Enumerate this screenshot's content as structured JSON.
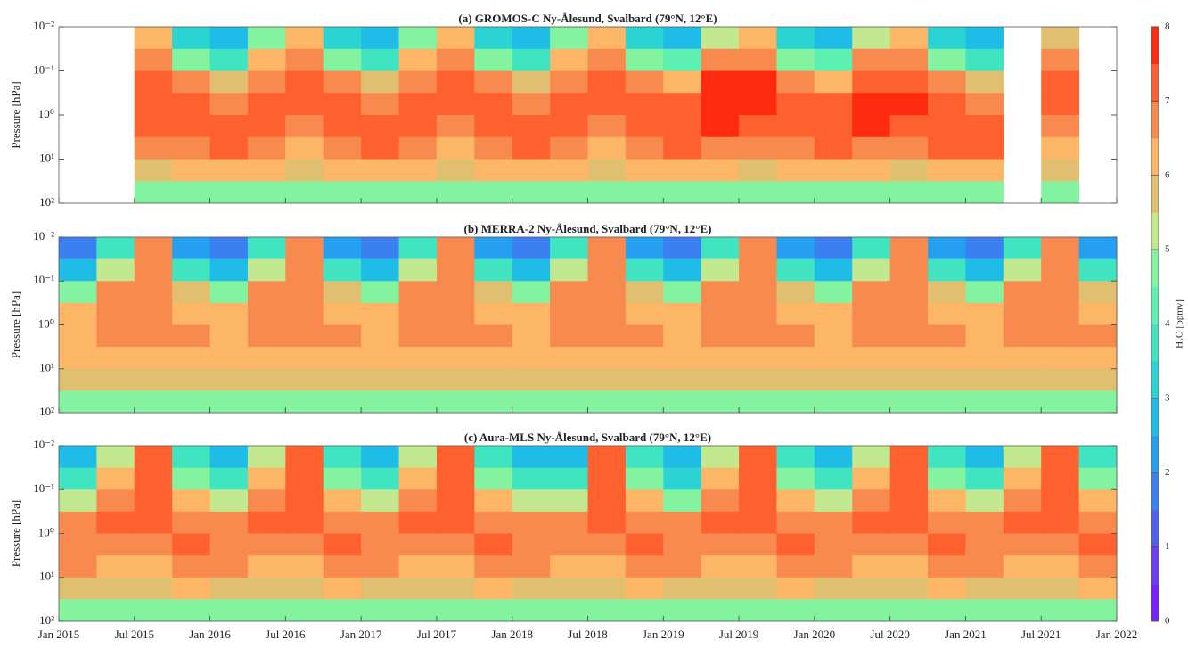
{
  "colorbar": {
    "label": "H₂O [ppmv]",
    "zlim": [
      0,
      8
    ],
    "zticks": [
      0,
      1,
      2,
      3,
      4,
      5,
      6,
      7,
      8
    ],
    "colors": [
      "#7a1fff",
      "#6a3cf5",
      "#5060f0",
      "#3a80f0",
      "#25a0f0",
      "#20bce8",
      "#2ad4d4",
      "#40e4c0",
      "#5ef0b0",
      "#84f3a0",
      "#c2e890",
      "#e0c070",
      "#fdb566",
      "#f88a50",
      "#ff6030",
      "#ff2a10"
    ]
  },
  "chart_data": [
    {
      "type": "heatmap",
      "title": "(a) GROMOS-C Ny-Ålesund, Svalbard (79°N, 12°E)",
      "y_label": "Pressure [hPa]",
      "xlim": [
        2015,
        2022
      ],
      "ylim": [
        100,
        0.01
      ],
      "ylog": true,
      "yticks": [
        {
          "value": 0.01,
          "label": "10⁻²"
        },
        {
          "value": 0.1,
          "label": "10⁻¹"
        },
        {
          "value": 1,
          "label": "10⁰"
        },
        {
          "value": 10,
          "label": "10¹"
        },
        {
          "value": 100,
          "label": "10²"
        }
      ],
      "x": [
        2015.125,
        2015.375,
        2015.625,
        2015.875,
        2016.125,
        2016.375,
        2016.625,
        2016.875,
        2017.125,
        2017.375,
        2017.625,
        2017.875,
        2018.125,
        2018.375,
        2018.625,
        2018.875,
        2019.125,
        2019.375,
        2019.625,
        2019.875,
        2020.125,
        2020.375,
        2020.625,
        2020.875,
        2021.125,
        2021.375,
        2021.625,
        2021.875
      ],
      "y": [
        0.0178,
        0.0562,
        0.178,
        0.562,
        1.78,
        5.62,
        17.8,
        56.2
      ],
      "values": [
        null,
        null,
        [
          6.0,
          6.5,
          7.0,
          7.2,
          7.0,
          6.5,
          5.9,
          4.8
        ],
        [
          3.0,
          4.5,
          6.5,
          7.0,
          7.2,
          6.8,
          6.0,
          4.8
        ],
        [
          2.5,
          3.5,
          5.5,
          6.8,
          7.0,
          7.0,
          6.0,
          4.8
        ],
        [
          4.5,
          6.0,
          6.8,
          7.0,
          7.0,
          6.5,
          6.0,
          4.8
        ],
        [
          6.0,
          6.5,
          7.0,
          7.0,
          6.8,
          6.3,
          5.9,
          4.8
        ],
        [
          3.0,
          4.5,
          6.5,
          7.0,
          7.0,
          6.8,
          6.0,
          4.8
        ],
        [
          2.5,
          3.5,
          5.5,
          6.8,
          7.0,
          7.2,
          6.2,
          4.8
        ],
        [
          4.5,
          6.0,
          6.8,
          7.0,
          7.0,
          6.5,
          6.0,
          4.8
        ],
        [
          6.0,
          6.5,
          7.0,
          7.1,
          6.9,
          6.4,
          5.9,
          4.8
        ],
        [
          3.0,
          4.5,
          6.5,
          7.0,
          7.1,
          6.9,
          6.0,
          4.8
        ],
        [
          2.5,
          3.5,
          5.5,
          6.8,
          7.0,
          7.2,
          6.2,
          4.8
        ],
        [
          4.5,
          6.0,
          6.8,
          7.0,
          7.0,
          6.5,
          6.0,
          4.8
        ],
        [
          6.0,
          6.5,
          7.0,
          7.1,
          6.9,
          6.4,
          5.9,
          4.8
        ],
        [
          3.0,
          4.5,
          6.5,
          7.1,
          7.2,
          6.9,
          6.0,
          4.8
        ],
        [
          2.5,
          4.0,
          6.0,
          7.0,
          7.2,
          7.0,
          6.2,
          4.8
        ],
        [
          5.0,
          6.5,
          7.5,
          7.7,
          7.6,
          6.8,
          6.0,
          4.8
        ],
        [
          6.0,
          6.8,
          7.5,
          7.7,
          7.4,
          6.6,
          5.9,
          4.8
        ],
        [
          3.0,
          4.8,
          6.8,
          7.2,
          7.3,
          6.9,
          6.0,
          4.8
        ],
        [
          2.5,
          4.0,
          6.0,
          7.2,
          7.4,
          7.2,
          6.2,
          4.8
        ],
        [
          5.0,
          6.5,
          7.4,
          7.6,
          7.5,
          6.8,
          6.0,
          4.8
        ],
        [
          6.0,
          6.8,
          7.4,
          7.6,
          7.3,
          6.6,
          5.9,
          4.8
        ],
        [
          3.0,
          4.5,
          6.6,
          7.2,
          7.3,
          7.0,
          6.0,
          4.8
        ],
        [
          2.5,
          3.5,
          5.5,
          6.8,
          7.0,
          7.0,
          6.2,
          4.8
        ],
        null,
        [
          5.5,
          6.5,
          7.2,
          7.2,
          6.8,
          6.2,
          5.8,
          4.8
        ],
        null
      ]
    },
    {
      "type": "heatmap",
      "title": "(b) MERRA-2 Ny-Ålesund, Svalbard (79°N, 12°E)",
      "y_label": "Pressure [hPa]",
      "xlim": [
        2015,
        2022
      ],
      "ylim": [
        100,
        0.01
      ],
      "ylog": true,
      "yticks": [
        {
          "value": 0.01,
          "label": "10⁻²"
        },
        {
          "value": 0.1,
          "label": "10⁻¹"
        },
        {
          "value": 1,
          "label": "10⁰"
        },
        {
          "value": 10,
          "label": "10¹"
        },
        {
          "value": 100,
          "label": "10²"
        }
      ],
      "x": [
        2015.125,
        2015.375,
        2015.625,
        2015.875,
        2016.125,
        2016.375,
        2016.625,
        2016.875,
        2017.125,
        2017.375,
        2017.625,
        2017.875,
        2018.125,
        2018.375,
        2018.625,
        2018.875,
        2019.125,
        2019.375,
        2019.625,
        2019.875,
        2020.125,
        2020.375,
        2020.625,
        2020.875,
        2021.125,
        2021.375,
        2021.625,
        2021.875
      ],
      "y": [
        0.0178,
        0.0562,
        0.178,
        0.562,
        1.78,
        5.62,
        17.8,
        56.2
      ],
      "values": [
        [
          1.5,
          2.5,
          4.5,
          6.0,
          6.3,
          6.1,
          5.8,
          4.6
        ],
        [
          3.5,
          5.0,
          6.5,
          6.8,
          6.6,
          6.2,
          5.8,
          4.6
        ],
        [
          6.5,
          6.8,
          6.9,
          6.9,
          6.6,
          6.2,
          5.8,
          4.6
        ],
        [
          2.0,
          3.5,
          5.5,
          6.3,
          6.5,
          6.2,
          5.8,
          4.6
        ],
        [
          1.5,
          2.5,
          4.5,
          6.0,
          6.3,
          6.1,
          5.8,
          4.6
        ],
        [
          3.5,
          5.0,
          6.5,
          6.8,
          6.6,
          6.2,
          5.8,
          4.6
        ],
        [
          6.5,
          6.8,
          6.9,
          6.9,
          6.6,
          6.2,
          5.8,
          4.6
        ],
        [
          2.0,
          3.5,
          5.5,
          6.3,
          6.5,
          6.2,
          5.8,
          4.6
        ],
        [
          1.5,
          2.5,
          4.5,
          6.0,
          6.3,
          6.1,
          5.8,
          4.6
        ],
        [
          3.5,
          5.0,
          6.5,
          6.8,
          6.6,
          6.2,
          5.8,
          4.6
        ],
        [
          6.5,
          6.8,
          6.9,
          6.9,
          6.6,
          6.2,
          5.8,
          4.6
        ],
        [
          2.0,
          3.5,
          5.5,
          6.3,
          6.5,
          6.2,
          5.8,
          4.6
        ],
        [
          1.5,
          2.5,
          4.5,
          6.0,
          6.3,
          6.1,
          5.8,
          4.6
        ],
        [
          3.5,
          5.0,
          6.5,
          6.8,
          6.6,
          6.2,
          5.8,
          4.6
        ],
        [
          6.5,
          6.8,
          6.9,
          6.9,
          6.6,
          6.2,
          5.8,
          4.6
        ],
        [
          2.0,
          3.5,
          5.5,
          6.3,
          6.5,
          6.2,
          5.8,
          4.6
        ],
        [
          1.5,
          2.5,
          4.5,
          6.0,
          6.3,
          6.1,
          5.8,
          4.6
        ],
        [
          3.5,
          5.0,
          6.5,
          6.8,
          6.6,
          6.2,
          5.8,
          4.6
        ],
        [
          6.5,
          6.8,
          6.9,
          6.9,
          6.6,
          6.2,
          5.8,
          4.6
        ],
        [
          2.0,
          3.5,
          5.5,
          6.3,
          6.5,
          6.2,
          5.8,
          4.6
        ],
        [
          1.5,
          2.5,
          4.5,
          6.0,
          6.3,
          6.1,
          5.8,
          4.6
        ],
        [
          3.5,
          5.0,
          6.5,
          6.8,
          6.6,
          6.2,
          5.8,
          4.6
        ],
        [
          6.5,
          6.8,
          6.9,
          6.9,
          6.6,
          6.2,
          5.8,
          4.6
        ],
        [
          2.0,
          3.5,
          5.5,
          6.3,
          6.5,
          6.2,
          5.8,
          4.6
        ],
        [
          1.5,
          2.5,
          4.5,
          6.0,
          6.3,
          6.1,
          5.8,
          4.6
        ],
        [
          3.5,
          5.0,
          6.5,
          6.8,
          6.6,
          6.2,
          5.8,
          4.6
        ],
        [
          6.5,
          6.8,
          6.9,
          6.9,
          6.6,
          6.2,
          5.8,
          4.6
        ],
        [
          2.0,
          3.5,
          5.5,
          6.3,
          6.5,
          6.2,
          5.8,
          4.6
        ]
      ]
    },
    {
      "type": "heatmap",
      "title": "(c) Aura-MLS Ny-Ålesund, Svalbard (79°N, 12°E)",
      "y_label": "Pressure [hPa]",
      "xlim": [
        2015,
        2022
      ],
      "ylim": [
        100,
        0.01
      ],
      "ylog": true,
      "xticks": [
        {
          "value": 2015,
          "label": "Jan 2015"
        },
        {
          "value": 2015.5,
          "label": "Jul 2015"
        },
        {
          "value": 2016,
          "label": "Jan 2016"
        },
        {
          "value": 2016.5,
          "label": "Jul 2016"
        },
        {
          "value": 2017,
          "label": "Jan 2017"
        },
        {
          "value": 2017.5,
          "label": "Jul 2017"
        },
        {
          "value": 2018,
          "label": "Jan 2018"
        },
        {
          "value": 2018.5,
          "label": "Jul 2018"
        },
        {
          "value": 2019,
          "label": "Jan 2019"
        },
        {
          "value": 2019.5,
          "label": "Jul 2019"
        },
        {
          "value": 2020,
          "label": "Jan 2020"
        },
        {
          "value": 2020.5,
          "label": "Jul 2020"
        },
        {
          "value": 2021,
          "label": "Jan 2021"
        },
        {
          "value": 2021.5,
          "label": "Jul 2021"
        },
        {
          "value": 2022,
          "label": "Jan 2022"
        }
      ],
      "yticks": [
        {
          "value": 0.01,
          "label": "10⁻²"
        },
        {
          "value": 0.1,
          "label": "10⁻¹"
        },
        {
          "value": 1,
          "label": "10⁰"
        },
        {
          "value": 10,
          "label": "10¹"
        },
        {
          "value": 100,
          "label": "10²"
        }
      ],
      "x": [
        2015.125,
        2015.375,
        2015.625,
        2015.875,
        2016.125,
        2016.375,
        2016.625,
        2016.875,
        2017.125,
        2017.375,
        2017.625,
        2017.875,
        2018.125,
        2018.375,
        2018.625,
        2018.875,
        2019.125,
        2019.375,
        2019.625,
        2019.875,
        2020.125,
        2020.375,
        2020.625,
        2020.875,
        2021.125,
        2021.375,
        2021.625,
        2021.875
      ],
      "y": [
        0.0178,
        0.0562,
        0.178,
        0.562,
        1.78,
        5.62,
        17.8,
        56.2
      ],
      "values": [
        [
          2.5,
          3.5,
          5.0,
          6.5,
          6.8,
          6.5,
          5.8,
          4.5
        ],
        [
          5.0,
          6.0,
          6.8,
          7.0,
          6.8,
          6.3,
          5.8,
          4.5
        ],
        [
          7.2,
          7.3,
          7.3,
          7.2,
          6.8,
          6.3,
          5.8,
          4.5
        ],
        [
          3.5,
          4.5,
          6.0,
          6.8,
          7.0,
          6.8,
          6.0,
          4.5
        ],
        [
          2.5,
          3.5,
          5.0,
          6.5,
          6.8,
          6.5,
          5.8,
          4.5
        ],
        [
          5.0,
          6.0,
          6.8,
          7.0,
          6.8,
          6.3,
          5.8,
          4.5
        ],
        [
          7.2,
          7.3,
          7.3,
          7.2,
          6.8,
          6.3,
          5.8,
          4.5
        ],
        [
          3.5,
          4.5,
          6.0,
          6.8,
          7.0,
          6.8,
          6.0,
          4.5
        ],
        [
          2.5,
          3.5,
          5.0,
          6.5,
          6.8,
          6.5,
          5.8,
          4.5
        ],
        [
          5.0,
          6.0,
          6.8,
          7.0,
          6.8,
          6.3,
          5.8,
          4.5
        ],
        [
          7.2,
          7.3,
          7.3,
          7.2,
          6.8,
          6.3,
          5.8,
          4.5
        ],
        [
          3.5,
          4.5,
          6.0,
          6.8,
          7.0,
          6.8,
          6.0,
          4.5
        ],
        [
          2.5,
          3.5,
          5.0,
          6.5,
          6.8,
          6.5,
          5.8,
          4.5
        ],
        [
          2.5,
          3.5,
          5.0,
          6.8,
          6.8,
          6.3,
          5.8,
          4.5
        ],
        [
          7.2,
          7.3,
          7.3,
          7.2,
          6.8,
          6.3,
          5.8,
          4.5
        ],
        [
          3.5,
          4.5,
          6.0,
          6.8,
          7.0,
          6.8,
          6.0,
          4.5
        ],
        [
          2.5,
          3.0,
          4.5,
          6.5,
          6.8,
          6.5,
          5.8,
          4.5
        ],
        [
          5.0,
          6.0,
          6.8,
          7.0,
          6.8,
          6.3,
          5.8,
          4.5
        ],
        [
          7.2,
          7.3,
          7.3,
          7.2,
          6.8,
          6.3,
          5.8,
          4.5
        ],
        [
          3.5,
          4.5,
          6.0,
          6.8,
          7.0,
          6.8,
          6.0,
          4.5
        ],
        [
          2.5,
          3.5,
          5.0,
          6.5,
          6.8,
          6.5,
          5.8,
          4.5
        ],
        [
          5.0,
          6.0,
          6.8,
          7.0,
          6.8,
          6.3,
          5.8,
          4.5
        ],
        [
          7.2,
          7.3,
          7.3,
          7.2,
          6.8,
          6.3,
          5.8,
          4.5
        ],
        [
          3.5,
          4.5,
          6.0,
          6.8,
          7.0,
          6.8,
          6.0,
          4.5
        ],
        [
          2.5,
          3.5,
          5.0,
          6.5,
          6.8,
          6.5,
          5.8,
          4.5
        ],
        [
          5.0,
          6.0,
          6.8,
          7.0,
          6.8,
          6.3,
          5.8,
          4.5
        ],
        [
          7.2,
          7.3,
          7.3,
          7.2,
          6.8,
          6.3,
          5.8,
          4.5
        ],
        [
          3.5,
          4.5,
          6.0,
          6.8,
          7.0,
          6.8,
          6.0,
          4.5
        ]
      ]
    }
  ]
}
